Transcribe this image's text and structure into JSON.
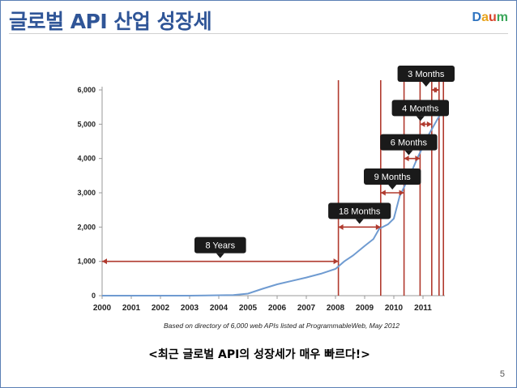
{
  "slide": {
    "title": "글로벌 API 산업 성장세",
    "caption": "<최근 글로벌 API의 성장세가 매우 빠르다!>",
    "page_number": "5",
    "logo": {
      "letters": [
        "D",
        "a",
        "u",
        "m"
      ],
      "colors": [
        "#2f74c0",
        "#e8a41c",
        "#d9442c",
        "#3aa65a"
      ]
    }
  },
  "chart_data": {
    "type": "line",
    "title": "",
    "source_note": "Based on directory of 6,000 web APIs listed at ProgrammableWeb, May 2012",
    "xlabel": "",
    "ylabel": "",
    "xlim": [
      2000,
      2011.75
    ],
    "ylim": [
      0,
      6000
    ],
    "x_ticks": [
      2000,
      2001,
      2002,
      2003,
      2004,
      2005,
      2006,
      2007,
      2008,
      2009,
      2010,
      2011
    ],
    "x_tick_labels": [
      "2000",
      "2001",
      "2002",
      "2003",
      "2004",
      "2005",
      "2006",
      "2007",
      "2008",
      "2009",
      "2010",
      "2011"
    ],
    "y_ticks": [
      0,
      1000,
      2000,
      3000,
      4000,
      5000,
      6000
    ],
    "y_tick_labels": [
      "0",
      "1,000",
      "2,000",
      "3,000",
      "4,000",
      "5,000",
      "6,000"
    ],
    "grid": false,
    "line_color": "#6f9bd1",
    "annotation_color": "#b03a2e",
    "series": [
      {
        "x": [
          2000,
          2003,
          2004.5,
          2005.0,
          2005.5,
          2006.0,
          2006.5,
          2007.0,
          2007.5,
          2008.0,
          2008.3,
          2008.6,
          2009.0,
          2009.3,
          2009.5,
          2009.8,
          2010.0,
          2010.2,
          2010.4,
          2010.6,
          2010.8,
          2011.0,
          2011.2,
          2011.4,
          2011.6
        ],
        "y": [
          0,
          0,
          20,
          60,
          200,
          330,
          430,
          530,
          640,
          780,
          1000,
          1170,
          1450,
          1650,
          1950,
          2080,
          2250,
          2900,
          3250,
          3600,
          4000,
          4350,
          4700,
          5000,
          5300
        ]
      }
    ],
    "vertical_markers": [
      2008.1,
      2009.55,
      2010.35,
      2010.9,
      2011.3,
      2011.55,
      2011.7
    ],
    "intervals": [
      {
        "label": "8 Years",
        "x_start": 2000,
        "x_end": 2008.1,
        "y": 1000
      },
      {
        "label": "18 Months",
        "x_start": 2008.1,
        "x_end": 2009.55,
        "y": 2000
      },
      {
        "label": "9 Months",
        "x_start": 2009.55,
        "x_end": 2010.35,
        "y": 3000
      },
      {
        "label": "6 Months",
        "x_start": 2010.35,
        "x_end": 2010.9,
        "y": 4000
      },
      {
        "label": "4 Months",
        "x_start": 2010.9,
        "x_end": 2011.3,
        "y": 5000
      },
      {
        "label": "3 Months",
        "x_start": 2011.3,
        "x_end": 2011.55,
        "y": 6000
      }
    ]
  }
}
